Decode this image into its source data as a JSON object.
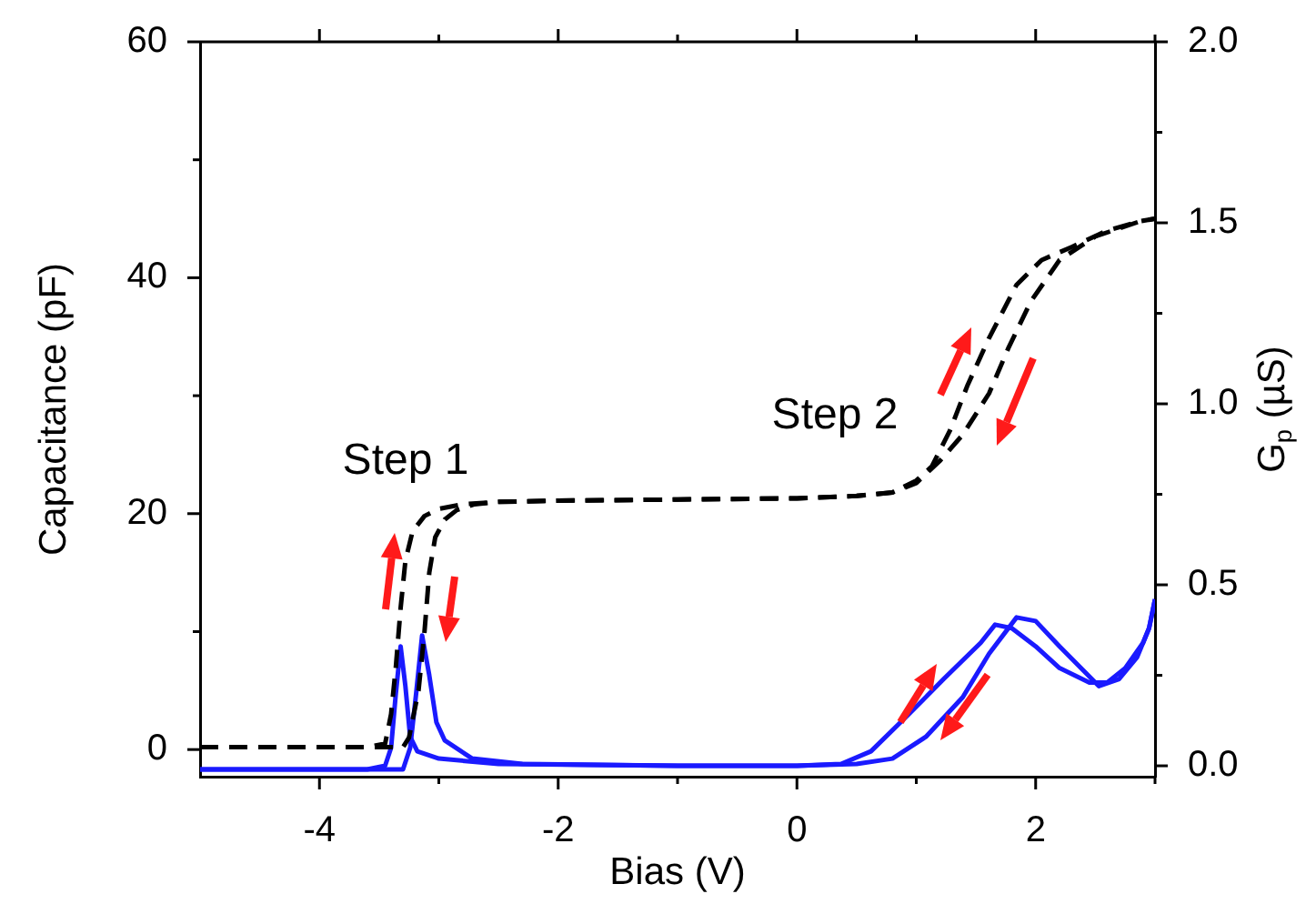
{
  "chart_data": {
    "type": "line",
    "xlabel": "Bias (V)",
    "ylabel": "Capacitance (pF)",
    "y2label": "G$_{p}$ (µS)",
    "xlim": [
      -5,
      3
    ],
    "xticks": [
      -4,
      {
        "value": -3,
        "label": null
      },
      -2,
      {
        "value": -1,
        "label": null
      },
      0,
      {
        "value": 1,
        "label": null
      },
      2,
      {
        "value": 3,
        "label": null
      }
    ],
    "ylim": [
      -2.3,
      60
    ],
    "yticks": [
      0,
      {
        "value": 10,
        "label": null
      },
      20,
      {
        "value": 30,
        "label": null
      },
      40,
      {
        "value": 50,
        "label": null
      },
      60
    ],
    "y2lim": [
      -0.03,
      2.0
    ],
    "y2ticks": [
      {
        "value": 0,
        "label": "0.0"
      },
      {
        "value": 0.25,
        "label": null
      },
      {
        "value": 0.5,
        "label": "0.5"
      },
      {
        "value": 0.75,
        "label": null
      },
      {
        "value": 1,
        "label": "1.0"
      },
      {
        "value": 1.25,
        "label": null
      },
      {
        "value": 1.5,
        "label": "1.5"
      },
      {
        "value": 1.75,
        "label": null
      },
      {
        "value": 2,
        "label": "2.0"
      }
    ],
    "marker": "none",
    "annotations": [
      "Step 1",
      "Step 2"
    ],
    "series": [
      {
        "color": "#000000",
        "line_style": "dashed",
        "x": [
          -5,
          -3.6,
          -3.45,
          -3.4,
          -3.36,
          -3.32,
          -3.28,
          -3.22,
          -3.12,
          -3.0,
          -2.8,
          -2.5,
          -2,
          -1,
          0,
          0.5,
          0.8,
          1.0,
          1.13,
          1.28,
          1.43,
          1.61,
          1.84,
          2.05,
          2.3,
          2.6,
          2.88,
          3
        ],
        "values": [
          0.2,
          0.2,
          0.5,
          3,
          7,
          12,
          16,
          18.5,
          19.8,
          20.4,
          20.8,
          21,
          21.1,
          21.2,
          21.3,
          21.5,
          21.8,
          22.8,
          24,
          27,
          30.9,
          34.9,
          39.4,
          41.5,
          42.6,
          44,
          44.8,
          45
        ]
      },
      {
        "color": "#000000",
        "line_style": "dashed",
        "x": [
          -5,
          -3.3,
          -3.25,
          -3.17,
          -3.12,
          -3.08,
          -3.03,
          -2.95,
          -2.85,
          -2.7,
          -2.5,
          -2,
          -1,
          0,
          0.5,
          0.8,
          1.0,
          1.2,
          1.39,
          1.61,
          1.77,
          1.96,
          2.2,
          2.5,
          2.88,
          3
        ],
        "values": [
          0.2,
          0.2,
          1,
          5,
          10,
          15,
          18,
          19.5,
          20.3,
          20.8,
          21,
          21.1,
          21.2,
          21.3,
          21.5,
          21.8,
          22.6,
          24.5,
          26.7,
          30.2,
          34,
          38,
          41.5,
          43.5,
          44.8,
          45
        ]
      },
      {
        "color": "#1a1aff",
        "axis": "y2",
        "x": [
          -5,
          -3.6,
          -3.45,
          -3.4,
          -3.36,
          -3.32,
          -3.28,
          -3.24,
          -3.18,
          -3.0,
          -2.5,
          -1,
          0,
          0.37,
          0.62,
          0.93,
          1.23,
          1.54,
          1.66,
          1.8,
          2.0,
          2.2,
          2.45,
          2.6,
          2.75,
          2.9,
          2.95,
          3
        ],
        "values": [
          -0.01,
          -0.01,
          0.0,
          0.05,
          0.2,
          0.33,
          0.22,
          0.08,
          0.04,
          0.02,
          0.005,
          0.0,
          0.0,
          0.005,
          0.04,
          0.14,
          0.24,
          0.34,
          0.39,
          0.38,
          0.33,
          0.27,
          0.23,
          0.23,
          0.27,
          0.34,
          0.38,
          0.46
        ]
      },
      {
        "color": "#1a1aff",
        "axis": "y2",
        "x": [
          -5,
          -3.3,
          -3.24,
          -3.19,
          -3.14,
          -3.08,
          -3.02,
          -2.95,
          -2.72,
          -2.3,
          -1,
          0,
          0.5,
          0.8,
          1.08,
          1.39,
          1.61,
          1.84,
          2.0,
          2.2,
          2.53,
          2.7,
          2.85,
          2.95,
          3
        ],
        "values": [
          -0.01,
          -0.01,
          0.05,
          0.2,
          0.36,
          0.25,
          0.12,
          0.07,
          0.02,
          0.005,
          0.0,
          0.0,
          0.005,
          0.02,
          0.08,
          0.19,
          0.31,
          0.41,
          0.4,
          0.33,
          0.22,
          0.24,
          0.3,
          0.38,
          0.46
        ]
      }
    ]
  }
}
